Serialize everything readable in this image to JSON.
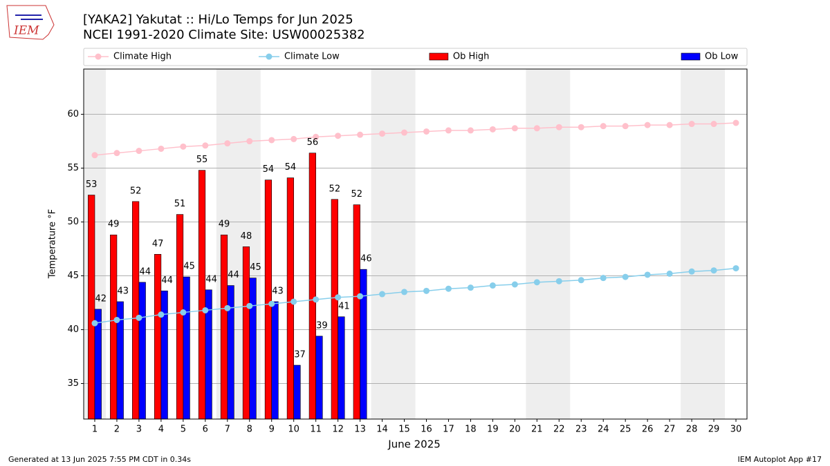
{
  "logo": "IEM",
  "chart_data": {
    "type": "bar",
    "title": "[YAKA2] Yakutat :: Hi/Lo Temps for Jun 2025",
    "subtitle": "NCEI 1991-2020 Climate Site: USW00025382",
    "y_label": "Temperature °F",
    "x_label": "June 2025",
    "footer_left": "Generated at 13 Jun 2025 7:55 PM CDT in 0.34s",
    "footer_right": "IEM Autoplot App #17",
    "x": [
      1,
      2,
      3,
      4,
      5,
      6,
      7,
      8,
      9,
      10,
      11,
      12,
      13,
      14,
      15,
      16,
      17,
      18,
      19,
      20,
      21,
      22,
      23,
      24,
      25,
      26,
      27,
      28,
      29,
      30
    ],
    "xticks": [
      1,
      2,
      3,
      4,
      5,
      6,
      7,
      8,
      9,
      10,
      11,
      12,
      13,
      14,
      15,
      16,
      17,
      18,
      19,
      20,
      21,
      22,
      23,
      24,
      25,
      26,
      27,
      28,
      29,
      30
    ],
    "xlim": [
      0.5,
      30.5
    ],
    "ylim": [
      31.7,
      64.2
    ],
    "yticks": [
      35,
      40,
      45,
      50,
      55,
      60
    ],
    "grid": true,
    "legend": "top",
    "shaded": [
      [
        0.5,
        1.5
      ],
      [
        6.5,
        8.5
      ],
      [
        13.5,
        15.5
      ],
      [
        20.5,
        22.5
      ],
      [
        27.5,
        29.5
      ]
    ],
    "shade_color": "#eeeeee",
    "series": [
      {
        "name": "Climate High",
        "kind": "line",
        "color": "#ffc0cb",
        "values": [
          56.2,
          56.4,
          56.6,
          56.8,
          57.0,
          57.1,
          57.3,
          57.5,
          57.6,
          57.7,
          57.9,
          58.0,
          58.1,
          58.2,
          58.3,
          58.4,
          58.5,
          58.5,
          58.6,
          58.7,
          58.7,
          58.8,
          58.8,
          58.9,
          58.9,
          59.0,
          59.0,
          59.1,
          59.1,
          59.2
        ]
      },
      {
        "name": "Climate Low",
        "kind": "line",
        "color": "#87ceeb",
        "values": [
          40.6,
          40.9,
          41.1,
          41.4,
          41.6,
          41.8,
          42.0,
          42.2,
          42.4,
          42.6,
          42.8,
          43.0,
          43.1,
          43.3,
          43.5,
          43.6,
          43.8,
          43.9,
          44.1,
          44.2,
          44.4,
          44.5,
          44.6,
          44.8,
          44.9,
          45.1,
          45.2,
          45.4,
          45.5,
          45.7
        ]
      },
      {
        "name": "Ob High",
        "kind": "bar",
        "color": "#ff0000",
        "offset": -0.3,
        "width": 0.3,
        "values": [
          52.5,
          48.8,
          51.9,
          47.0,
          50.7,
          54.8,
          48.8,
          47.7,
          53.9,
          54.1,
          56.4,
          52.1,
          51.6,
          null,
          null,
          null,
          null,
          null,
          null,
          null,
          null,
          null,
          null,
          null,
          null,
          null,
          null,
          null,
          null,
          null
        ],
        "value_labels": [
          "53",
          "49",
          "52",
          "47",
          "51",
          "55",
          "49",
          "48",
          "54",
          "54",
          "56",
          "52",
          "52",
          null,
          null,
          null,
          null,
          null,
          null,
          null,
          null,
          null,
          null,
          null,
          null,
          null,
          null,
          null,
          null,
          null
        ]
      },
      {
        "name": "Ob Low",
        "kind": "bar",
        "color": "#0000ff",
        "offset": 0,
        "width": 0.3,
        "values": [
          41.9,
          42.6,
          44.4,
          43.6,
          44.9,
          43.7,
          44.1,
          44.8,
          42.6,
          36.7,
          39.4,
          41.2,
          45.6,
          null,
          null,
          null,
          null,
          null,
          null,
          null,
          null,
          null,
          null,
          null,
          null,
          null,
          null,
          null,
          null,
          null
        ],
        "value_labels": [
          "42",
          "43",
          "44",
          "44",
          "45",
          "44",
          "44",
          "45",
          "43",
          "37",
          "39",
          "41",
          "46",
          null,
          null,
          null,
          null,
          null,
          null,
          null,
          null,
          null,
          null,
          null,
          null,
          null,
          null,
          null,
          null,
          null
        ]
      }
    ]
  }
}
